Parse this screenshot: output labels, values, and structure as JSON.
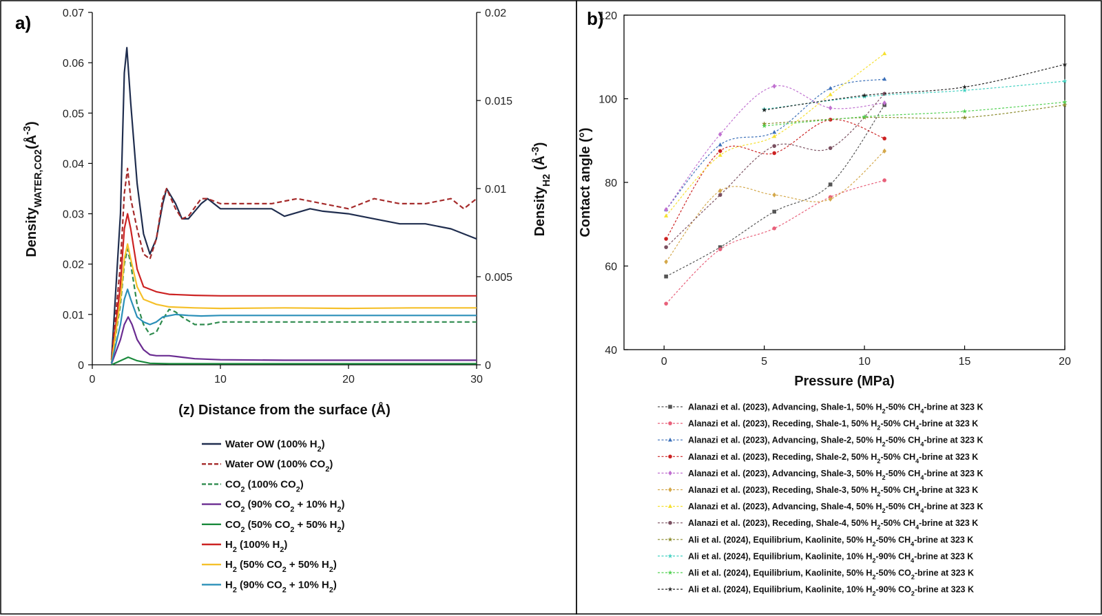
{
  "chart_data": [
    {
      "panel_label": "a)",
      "type": "line",
      "xlabel": "(z) Distance from the surface (Å)",
      "ylabel_left": [
        "Density",
        "WATER,CO",
        "2",
        "(Å",
        "-3",
        ")"
      ],
      "ylabel_right": [
        "Density",
        "H",
        "2",
        " (Å",
        "-3",
        ")"
      ],
      "xlim": [
        0,
        30
      ],
      "ylim_left": [
        0,
        0.07
      ],
      "ylim_right": [
        0,
        0.02
      ],
      "xticks": [
        "0",
        "10",
        "20",
        "30"
      ],
      "yticks_left": [
        "0",
        "0.01",
        "0.02",
        "0.03",
        "0.04",
        "0.05",
        "0.06",
        "0.07"
      ],
      "yticks_right": [
        "0",
        "0.005",
        "0.01",
        "0.015",
        "0.02"
      ],
      "legend_position": "below",
      "series": [
        {
          "label": [
            "Water OW (100% H",
            "2",
            ")"
          ],
          "color": "#1f2d4e",
          "dash": "solid",
          "axis": "left",
          "x": [
            1.5,
            2.2,
            2.5,
            2.7,
            3.0,
            3.5,
            4.0,
            4.5,
            5.0,
            5.5,
            5.8,
            6.5,
            7.0,
            7.5,
            8.5,
            9.0,
            10,
            12,
            14,
            15,
            17,
            18,
            20,
            22,
            24,
            26,
            28,
            30
          ],
          "y": [
            0.001,
            0.03,
            0.058,
            0.063,
            0.052,
            0.036,
            0.026,
            0.022,
            0.025,
            0.032,
            0.035,
            0.032,
            0.029,
            0.029,
            0.032,
            0.033,
            0.031,
            0.031,
            0.031,
            0.0295,
            0.031,
            0.0305,
            0.03,
            0.029,
            0.028,
            0.028,
            0.027,
            0.025
          ]
        },
        {
          "label": [
            "Water OW (100% CO",
            "2",
            ")"
          ],
          "color": "#a52a2a",
          "dash": "dashed",
          "axis": "left",
          "x": [
            1.5,
            2.2,
            2.5,
            2.75,
            3.0,
            3.5,
            4.0,
            4.5,
            5.0,
            5.5,
            5.8,
            6.5,
            7.0,
            7.5,
            8.5,
            9.0,
            10,
            12,
            14,
            16,
            18,
            20,
            22,
            24,
            26,
            28,
            29,
            30
          ],
          "y": [
            0.001,
            0.02,
            0.034,
            0.039,
            0.033,
            0.027,
            0.022,
            0.021,
            0.025,
            0.033,
            0.035,
            0.031,
            0.029,
            0.0295,
            0.033,
            0.033,
            0.032,
            0.032,
            0.032,
            0.033,
            0.032,
            0.031,
            0.033,
            0.032,
            0.032,
            0.033,
            0.031,
            0.033
          ]
        },
        {
          "label": [
            "CO",
            "2",
            " (100% CO",
            "2",
            ")"
          ],
          "color": "#2e8b4e",
          "dash": "dashed",
          "axis": "left",
          "x": [
            1.5,
            2.2,
            2.5,
            2.75,
            3.0,
            3.5,
            4.0,
            4.5,
            5.0,
            5.5,
            6.0,
            6.5,
            7.0,
            8.0,
            9.0,
            10,
            15,
            20,
            25,
            30
          ],
          "y": [
            0.0003,
            0.012,
            0.02,
            0.023,
            0.02,
            0.012,
            0.008,
            0.006,
            0.0065,
            0.009,
            0.011,
            0.0105,
            0.0095,
            0.008,
            0.008,
            0.0085,
            0.0085,
            0.0085,
            0.0085,
            0.0085
          ]
        },
        {
          "label": [
            "CO",
            "2",
            " (90% CO",
            "2",
            " + 10% H",
            "2",
            ")"
          ],
          "color": "#6a2c91",
          "dash": "solid",
          "axis": "left",
          "x": [
            1.5,
            2.2,
            2.5,
            2.8,
            3.1,
            3.5,
            4.0,
            4.5,
            5.0,
            6.0,
            7.0,
            8.0,
            10,
            15,
            20,
            25,
            30
          ],
          "y": [
            0.0002,
            0.005,
            0.008,
            0.0095,
            0.008,
            0.005,
            0.003,
            0.002,
            0.0018,
            0.0018,
            0.0015,
            0.0012,
            0.001,
            0.0009,
            0.0009,
            0.0009,
            0.0009
          ]
        },
        {
          "label": [
            "CO",
            "2",
            " (50% CO",
            "2",
            " + 50% H",
            "2",
            ")"
          ],
          "color": "#1a8a3c",
          "dash": "solid",
          "axis": "left",
          "x": [
            1.5,
            2.2,
            2.8,
            3.5,
            4.5,
            6.0,
            10,
            20,
            30
          ],
          "y": [
            0.0,
            0.0008,
            0.0015,
            0.0008,
            0.0003,
            0.0002,
            0.0002,
            0.0002,
            0.0002
          ]
        },
        {
          "label": [
            "H",
            "2",
            " (100% H",
            "2",
            ")"
          ],
          "color": "#cc2222",
          "dash": "solid",
          "axis": "left",
          "x": [
            1.5,
            2.2,
            2.5,
            2.75,
            3.0,
            3.5,
            4.0,
            5.0,
            6.0,
            8.0,
            10,
            15,
            20,
            25,
            30
          ],
          "y": [
            0.0004,
            0.016,
            0.027,
            0.03,
            0.027,
            0.019,
            0.0155,
            0.0145,
            0.014,
            0.0138,
            0.0137,
            0.0137,
            0.0137,
            0.0137,
            0.0137
          ]
        },
        {
          "label": [
            "H",
            "2",
            " (50% CO",
            "2",
            " + 50% H",
            "2",
            ")"
          ],
          "color": "#f5c02a",
          "dash": "solid",
          "axis": "left",
          "x": [
            1.5,
            2.2,
            2.5,
            2.75,
            3.0,
            3.5,
            4.0,
            5.0,
            6.0,
            8.0,
            10,
            15,
            20,
            25,
            30
          ],
          "y": [
            0.0004,
            0.013,
            0.021,
            0.024,
            0.021,
            0.0155,
            0.013,
            0.012,
            0.0115,
            0.0113,
            0.0112,
            0.0113,
            0.0112,
            0.0113,
            0.0113
          ]
        },
        {
          "label": [
            "H",
            "2",
            " (90% CO",
            "2",
            " + 10% H",
            "2",
            ")"
          ],
          "color": "#2a8fb8",
          "dash": "solid",
          "axis": "left",
          "x": [
            1.5,
            2.2,
            2.5,
            2.75,
            3.0,
            3.5,
            4.0,
            4.5,
            5.0,
            5.5,
            6.5,
            7.5,
            8.5,
            10,
            15,
            20,
            25,
            30
          ],
          "y": [
            0.0003,
            0.008,
            0.013,
            0.015,
            0.013,
            0.0095,
            0.0085,
            0.008,
            0.0085,
            0.0095,
            0.01,
            0.0098,
            0.0097,
            0.0098,
            0.0098,
            0.0098,
            0.0098,
            0.0098
          ]
        }
      ]
    },
    {
      "panel_label": "b)",
      "type": "scatter",
      "xlabel": "Pressure (MPa)",
      "ylabel": "Contact angle (°)",
      "xlim": [
        -2,
        20
      ],
      "ylim": [
        40,
        120
      ],
      "xticks": [
        "0",
        "5",
        "10",
        "15",
        "20"
      ],
      "yticks": [
        "40",
        "60",
        "80",
        "100",
        "120"
      ],
      "legend_position": "below",
      "series": [
        {
          "label": [
            "Alanazi et al. (2023), Advancing, Shale-1, 50% H",
            "2",
            "-50% CH",
            "4",
            "-brine at 323 K"
          ],
          "color": "#555555",
          "marker": "square",
          "x": [
            0.1,
            2.8,
            5.5,
            8.3,
            11
          ],
          "y": [
            57.5,
            64.5,
            73,
            79.5,
            98.5
          ]
        },
        {
          "label": [
            "Alanazi et al. (2023), Receding, Shale-1, 50% H",
            "2",
            "-50% CH",
            "4",
            "-brine at 323 K"
          ],
          "color": "#e8607a",
          "marker": "circle",
          "x": [
            0.1,
            2.8,
            5.5,
            8.3,
            11
          ],
          "y": [
            51,
            64,
            69,
            76.5,
            80.5
          ]
        },
        {
          "label": [
            "Alanazi et al. (2023), Advancing, Shale-2, 50% H",
            "2",
            "-50% CH",
            "4",
            "-brine at 323 K"
          ],
          "color": "#3a6fb8",
          "marker": "triangle",
          "x": [
            0.1,
            2.8,
            5.5,
            8.3,
            11
          ],
          "y": [
            73.5,
            89,
            92,
            102.5,
            104.7
          ]
        },
        {
          "label": [
            "Alanazi et al. (2023), Receding, Shale-2, 50% H",
            "2",
            "-50% CH",
            "4",
            "-brine at 323 K"
          ],
          "color": "#cc2222",
          "marker": "circle",
          "x": [
            0.1,
            2.8,
            5.5,
            8.3,
            11
          ],
          "y": [
            66.5,
            87.5,
            87,
            95,
            90.5
          ]
        },
        {
          "label": [
            "Alanazi et al. (2023), Advancing, Shale-3, 50% H",
            "2",
            "-50% CH",
            "4",
            "-brine at 323 K"
          ],
          "color": "#c070d0",
          "marker": "diamond",
          "x": [
            0.1,
            2.8,
            5.5,
            8.3,
            11
          ],
          "y": [
            73.5,
            91.5,
            103,
            97.8,
            99
          ]
        },
        {
          "label": [
            "Alanazi et al. (2023), Receding, Shale-3, 50% H",
            "2",
            "-50% CH",
            "4",
            "-brine at 323 K"
          ],
          "color": "#d4a84a",
          "marker": "diamond",
          "x": [
            0.1,
            2.8,
            5.5,
            8.3,
            11
          ],
          "y": [
            61,
            78,
            77,
            76,
            87.5
          ]
        },
        {
          "label": [
            "Alanazi et al. (2023), Advancing, Shale-4, 50% H",
            "2",
            "-50% CH",
            "4",
            "-brine at 323 K"
          ],
          "color": "#f5e030",
          "marker": "triangle",
          "x": [
            0.1,
            2.8,
            5.5,
            8.3,
            11
          ],
          "y": [
            72,
            86.5,
            91,
            101,
            110.8
          ]
        },
        {
          "label": [
            "Alanazi et al. (2023), Receding, Shale-4, 50% H",
            "2",
            "-50% CH",
            "4",
            "-brine at 323 K"
          ],
          "color": "#7a5060",
          "marker": "circle",
          "x": [
            0.1,
            2.8,
            5.5,
            8.3,
            11
          ],
          "y": [
            64.5,
            77,
            88.7,
            88.2,
            101.2
          ]
        },
        {
          "label": [
            "Ali et al. (2024), Equilibrium, Kaolinite, 50% H",
            "2",
            "-50% CH",
            "4",
            "-brine at 323 K"
          ],
          "color": "#8a8a2a",
          "marker": "star",
          "x": [
            5,
            10,
            15,
            20
          ],
          "y": [
            94,
            95.5,
            95.5,
            98.5
          ]
        },
        {
          "label": [
            "Ali et al. (2024), Equilibrium, Kaolinite, 10% H",
            "2",
            "-90% CH",
            "4",
            "-brine at 323 K"
          ],
          "color": "#40d0c0",
          "marker": "star",
          "x": [
            5,
            10,
            15,
            20
          ],
          "y": [
            97.5,
            100.5,
            102,
            104.2
          ]
        },
        {
          "label": [
            "Ali et al. (2024), Equilibrium, Kaolinite, 50% H",
            "2",
            "-50% CO",
            "2",
            "-brine at 323 K"
          ],
          "color": "#50d050",
          "marker": "star",
          "x": [
            5,
            10,
            15,
            20
          ],
          "y": [
            93.5,
            95.7,
            97,
            99.2
          ]
        },
        {
          "label": [
            "Ali et al. (2024), Equilibrium, Kaolinite, 10% H",
            "2",
            "-90% CO",
            "2",
            "-brine at 323 K"
          ],
          "color": "#222222",
          "marker": "star",
          "x": [
            5,
            10,
            15,
            20
          ],
          "y": [
            97.3,
            100.8,
            102.8,
            108.2
          ]
        }
      ]
    }
  ]
}
